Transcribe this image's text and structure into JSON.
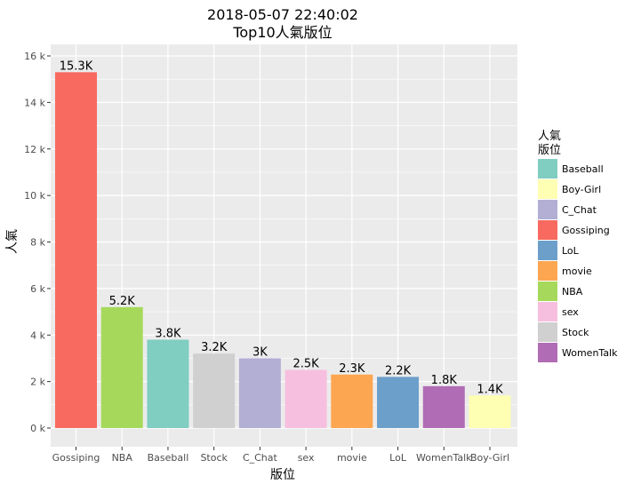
{
  "chart_data": {
    "type": "bar",
    "title": "2018-05-07 22:40:02",
    "subtitle": "Top10人氣版位",
    "xlabel": "版位",
    "ylabel": "人氣",
    "categories": [
      "Gossiping",
      "NBA",
      "Baseball",
      "Stock",
      "C_Chat",
      "sex",
      "movie",
      "LoL",
      "WomenTalk",
      "Boy-Girl"
    ],
    "values": [
      15300,
      5200,
      3800,
      3200,
      3000,
      2500,
      2300,
      2200,
      1800,
      1400
    ],
    "data_labels": [
      "15.3K",
      "5.2K",
      "3.8K",
      "3.2K",
      "3K",
      "2.5K",
      "2.3K",
      "2.2K",
      "1.8K",
      "1.4K"
    ],
    "ylim": [
      0,
      16000
    ],
    "yticks": [
      0,
      2000,
      4000,
      6000,
      8000,
      10000,
      12000,
      14000,
      16000
    ],
    "ytick_labels": [
      "0 k",
      "2 k",
      "4 k",
      "6 k",
      "8 k",
      "10 k",
      "12 k",
      "14 k",
      "16 k"
    ],
    "grid": true,
    "legend_position": "right",
    "legend": {
      "title": "人氣\n版位",
      "entries": [
        "Baseball",
        "Boy-Girl",
        "C_Chat",
        "Gossiping",
        "LoL",
        "movie",
        "NBA",
        "sex",
        "Stock",
        "WomenTalk"
      ]
    },
    "colors": {
      "Baseball": "#80CDC1",
      "Boy-Girl": "#FFFFB3",
      "C_Chat": "#B3AED4",
      "Gossiping": "#F8695F",
      "LoL": "#6C9FCA",
      "movie": "#FDA651",
      "NBA": "#A6D95B",
      "sex": "#F7BFDF",
      "Stock": "#D0D0D0",
      "WomenTalk": "#B06CB4"
    }
  }
}
